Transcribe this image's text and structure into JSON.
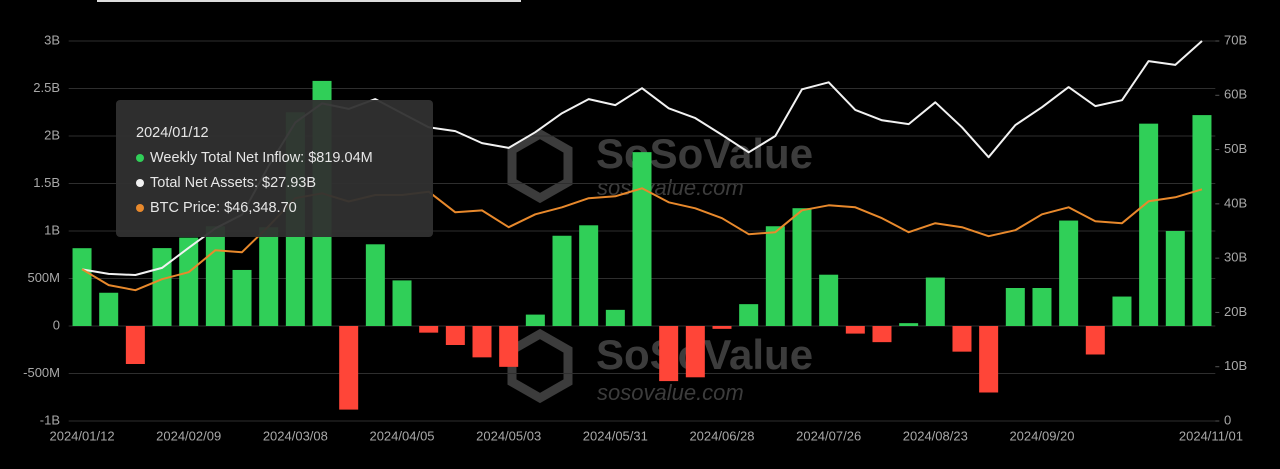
{
  "chart_data": {
    "type": "bar",
    "categories": [
      "2024/01/12",
      null,
      null,
      null,
      "2024/02/09",
      null,
      null,
      null,
      "2024/03/08",
      null,
      null,
      null,
      "2024/04/05",
      null,
      null,
      null,
      "2024/05/03",
      null,
      null,
      null,
      "2024/05/31",
      null,
      null,
      null,
      "2024/06/28",
      null,
      null,
      null,
      "2024/07/26",
      null,
      null,
      null,
      "2024/08/23",
      null,
      null,
      null,
      "2024/09/20",
      null,
      null,
      null,
      null,
      null,
      "2024/11/01"
    ],
    "series": [
      {
        "type": "bar",
        "color": "#30cf58",
        "negative_color": "#ff4538",
        "values": [
          0.81904,
          0.35,
          -0.4,
          0.82,
          0.93,
          1.05,
          0.59,
          1.04,
          2.25,
          2.58,
          -0.88,
          0.86,
          0.48,
          -0.07,
          -0.2,
          -0.33,
          -0.43,
          0.12,
          0.95,
          1.06,
          0.17,
          1.83,
          -0.58,
          -0.54,
          -0.03,
          0.23,
          1.05,
          1.24,
          0.54,
          -0.08,
          -0.17,
          0.03,
          0.51,
          -0.27,
          -0.7,
          0.4,
          0.4,
          1.11,
          -0.3,
          0.31,
          2.13,
          1.0,
          2.22
        ]
      },
      {
        "type": "line",
        "axis": "y2",
        "color": "#f2f2f2",
        "values": [
          27.93,
          27.1,
          26.9,
          28.2,
          31.9,
          35.5,
          38.0,
          47.0,
          55.0,
          58.5,
          57.5,
          59.3,
          56.7,
          54.1,
          53.4,
          51.2,
          50.3,
          53.2,
          56.7,
          59.3,
          58.2,
          61.3,
          57.6,
          55.8,
          52.7,
          49.5,
          52.5,
          61.1,
          62.4,
          57.3,
          55.4,
          54.7,
          58.7,
          54.1,
          48.6,
          54.5,
          57.8,
          61.5,
          58.0,
          59.1,
          66.3,
          65.6,
          70.0
        ]
      },
      {
        "type": "line",
        "axis": "y3",
        "color": "#e8892c",
        "values": [
          46348.7,
          41470,
          39940,
          43300,
          45430,
          52140,
          51530,
          59460,
          68000,
          69500,
          67000,
          69000,
          69000,
          70000,
          63700,
          64300,
          59150,
          63100,
          65250,
          68000,
          68600,
          71040,
          66770,
          64940,
          61900,
          57020,
          57630,
          64330,
          65860,
          65250,
          61900,
          57630,
          60370,
          59150,
          56410,
          58240,
          63110,
          65250,
          60980,
          60370,
          67080,
          68300,
          70740
        ]
      }
    ],
    "ylim": [
      -1,
      3
    ],
    "yticks": [
      {
        "value": -1,
        "label": "-1B"
      },
      {
        "value": -0.5,
        "label": "-500M"
      },
      0,
      {
        "value": 0.5,
        "label": "500M"
      },
      {
        "value": 1,
        "label": "1B"
      },
      {
        "value": 1.5,
        "label": "1.5B"
      },
      {
        "value": 2,
        "label": "2B"
      },
      {
        "value": 2.5,
        "label": "2.5B"
      },
      {
        "value": 3,
        "label": "3B"
      }
    ],
    "y2lim": [
      0,
      70
    ],
    "y2ticks": [
      0,
      {
        "value": 10,
        "label": "10B"
      },
      {
        "value": 20,
        "label": "20B"
      },
      {
        "value": 30,
        "label": "30B"
      },
      {
        "value": 40,
        "label": "40B"
      },
      {
        "value": 50,
        "label": "50B"
      },
      {
        "value": 60,
        "label": "60B"
      },
      {
        "value": 70,
        "label": "70B"
      }
    ],
    "y3lim": [
      0,
      116000
    ],
    "grid": true,
    "tooltip": {
      "date": "2024/01/12",
      "lines": [
        "Weekly Total Net Inflow: $819.04M",
        "Total Net Assets: $27.93B",
        "BTC Price: $46,348.70"
      ]
    },
    "watermark": {
      "brand": "SoSoValue",
      "site": "sosovalue.com"
    }
  }
}
